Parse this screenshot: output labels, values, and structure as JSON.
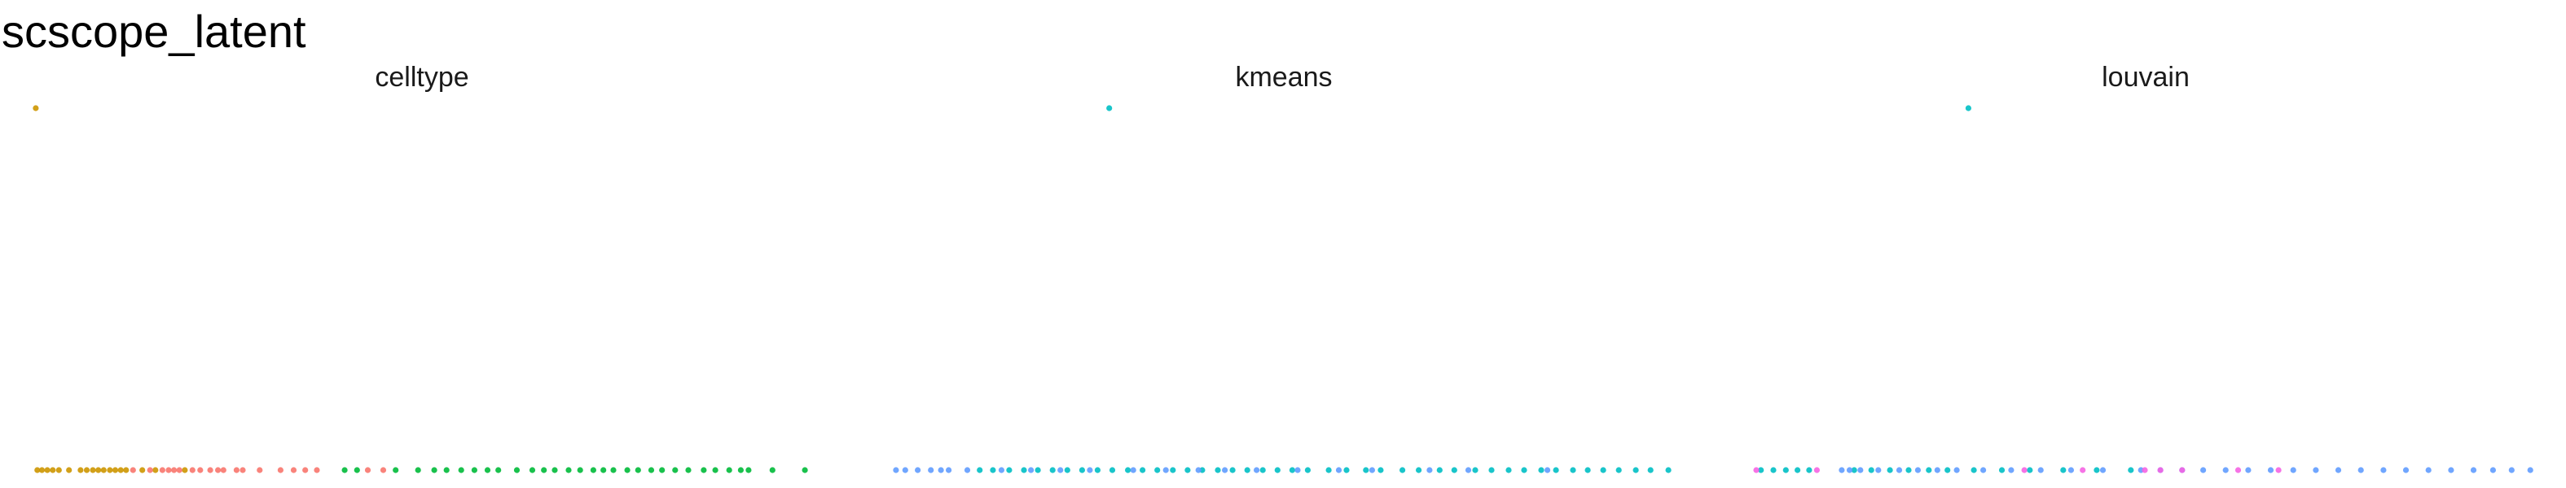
{
  "title": "scscope_latent",
  "colors": {
    "c1": "#cd9600",
    "c2": "#f8766d",
    "c3": "#00ba38",
    "c4": "#00bfc4",
    "c5": "#619cff",
    "c6": "#f564e3"
  },
  "chart_data": [
    {
      "type": "scatter",
      "title": "celltype",
      "grid": false,
      "axes_visible": false,
      "series": [
        {
          "color": "#cd9600",
          "points": [
            [
              0.002,
              1.0
            ],
            [
              0.004,
              0.0
            ],
            [
              0.01,
              0.0
            ],
            [
              0.017,
              0.0
            ],
            [
              0.024,
              0.0
            ],
            [
              0.032,
              0.0
            ],
            [
              0.045,
              0.0
            ],
            [
              0.06,
              0.0
            ],
            [
              0.068,
              0.0
            ],
            [
              0.076,
              0.0
            ],
            [
              0.083,
              0.0
            ],
            [
              0.09,
              0.0
            ],
            [
              0.098,
              0.0
            ],
            [
              0.105,
              0.0
            ],
            [
              0.112,
              0.0
            ],
            [
              0.119,
              0.0
            ],
            [
              0.14,
              0.0
            ],
            [
              0.157,
              0.0
            ],
            [
              0.195,
              0.0
            ]
          ]
        },
        {
          "color": "#f8766d",
          "points": [
            [
              0.128,
              0.0
            ],
            [
              0.15,
              0.0
            ],
            [
              0.166,
              0.0
            ],
            [
              0.174,
              0.0
            ],
            [
              0.181,
              0.0
            ],
            [
              0.188,
              0.0
            ],
            [
              0.205,
              0.0
            ],
            [
              0.215,
              0.0
            ],
            [
              0.228,
              0.0
            ],
            [
              0.238,
              0.0
            ],
            [
              0.245,
              0.0
            ],
            [
              0.262,
              0.0
            ],
            [
              0.27,
              0.0
            ],
            [
              0.292,
              0.0
            ],
            [
              0.319,
              0.0
            ],
            [
              0.336,
              0.0
            ],
            [
              0.351,
              0.0
            ],
            [
              0.366,
              0.0
            ],
            [
              0.432,
              0.0
            ],
            [
              0.452,
              0.0
            ]
          ]
        },
        {
          "color": "#00ba38",
          "points": [
            [
              0.402,
              0.0
            ],
            [
              0.418,
              0.0
            ],
            [
              0.468,
              0.0
            ],
            [
              0.497,
              0.0
            ],
            [
              0.518,
              0.0
            ],
            [
              0.534,
              0.0
            ],
            [
              0.553,
              0.0
            ],
            [
              0.57,
              0.0
            ],
            [
              0.587,
              0.0
            ],
            [
              0.601,
              0.0
            ],
            [
              0.625,
              0.0
            ],
            [
              0.645,
              0.0
            ],
            [
              0.66,
              0.0
            ],
            [
              0.674,
              0.0
            ],
            [
              0.692,
              0.0
            ],
            [
              0.707,
              0.0
            ],
            [
              0.724,
              0.0
            ],
            [
              0.737,
              0.0
            ],
            [
              0.75,
              0.0
            ],
            [
              0.768,
              0.0
            ],
            [
              0.782,
              0.0
            ],
            [
              0.799,
              0.0
            ],
            [
              0.813,
              0.0
            ],
            [
              0.83,
              0.0
            ],
            [
              0.847,
              0.0
            ],
            [
              0.867,
              0.0
            ],
            [
              0.882,
              0.0
            ],
            [
              0.9,
              0.0
            ],
            [
              0.915,
              0.0
            ],
            [
              0.925,
              0.0
            ],
            [
              0.956,
              0.0
            ],
            [
              0.998,
              0.0
            ]
          ]
        }
      ]
    },
    {
      "type": "scatter",
      "title": "kmeans",
      "grid": false,
      "axes_visible": false,
      "series": [
        {
          "color": "#00bfc4",
          "points": [
            [
              0.277,
              1.0
            ],
            [
              0.11,
              0.0
            ],
            [
              0.127,
              0.0
            ],
            [
              0.148,
              0.0
            ],
            [
              0.167,
              0.0
            ],
            [
              0.185,
              0.0
            ],
            [
              0.204,
              0.0
            ],
            [
              0.223,
              0.0
            ],
            [
              0.242,
              0.0
            ],
            [
              0.262,
              0.0
            ],
            [
              0.281,
              0.0
            ],
            [
              0.301,
              0.0
            ],
            [
              0.32,
              0.0
            ],
            [
              0.339,
              0.0
            ],
            [
              0.359,
              0.0
            ],
            [
              0.378,
              0.0
            ],
            [
              0.397,
              0.0
            ],
            [
              0.417,
              0.0
            ],
            [
              0.436,
              0.0
            ],
            [
              0.455,
              0.0
            ],
            [
              0.475,
              0.0
            ],
            [
              0.494,
              0.0
            ],
            [
              0.513,
              0.0
            ],
            [
              0.533,
              0.0
            ],
            [
              0.56,
              0.0
            ],
            [
              0.583,
              0.0
            ],
            [
              0.608,
              0.0
            ],
            [
              0.627,
              0.0
            ],
            [
              0.655,
              0.0
            ],
            [
              0.676,
              0.0
            ],
            [
              0.703,
              0.0
            ],
            [
              0.722,
              0.0
            ],
            [
              0.749,
              0.0
            ],
            [
              0.77,
              0.0
            ],
            [
              0.792,
              0.0
            ],
            [
              0.812,
              0.0
            ],
            [
              0.834,
              0.0
            ],
            [
              0.853,
              0.0
            ],
            [
              0.875,
              0.0
            ],
            [
              0.894,
              0.0
            ],
            [
              0.914,
              0.0
            ],
            [
              0.934,
              0.0
            ],
            [
              0.956,
              0.0
            ],
            [
              0.975,
              0.0
            ],
            [
              0.998,
              0.0
            ]
          ]
        },
        {
          "color": "#619cff",
          "points": [
            [
              0.002,
              0.0
            ],
            [
              0.014,
              0.0
            ],
            [
              0.03,
              0.0
            ],
            [
              0.047,
              0.0
            ],
            [
              0.06,
              0.0
            ],
            [
              0.07,
              0.0
            ],
            [
              0.094,
              0.0
            ],
            [
              0.138,
              0.0
            ],
            [
              0.176,
              0.0
            ],
            [
              0.214,
              0.0
            ],
            [
              0.252,
              0.0
            ],
            [
              0.308,
              0.0
            ],
            [
              0.35,
              0.0
            ],
            [
              0.392,
              0.0
            ],
            [
              0.426,
              0.0
            ],
            [
              0.467,
              0.0
            ],
            [
              0.52,
              0.0
            ],
            [
              0.573,
              0.0
            ],
            [
              0.616,
              0.0
            ],
            [
              0.69,
              0.0
            ],
            [
              0.74,
              0.0
            ],
            [
              0.842,
              0.0
            ]
          ]
        }
      ]
    },
    {
      "type": "scatter",
      "title": "louvain",
      "grid": false,
      "axes_visible": false,
      "series": [
        {
          "color": "#00bfc4",
          "points": [
            [
              0.273,
              1.0
            ],
            [
              0.006,
              0.0
            ],
            [
              0.022,
              0.0
            ],
            [
              0.038,
              0.0
            ],
            [
              0.053,
              0.0
            ],
            [
              0.068,
              0.0
            ],
            [
              0.126,
              0.0
            ],
            [
              0.148,
              0.0
            ],
            [
              0.172,
              0.0
            ],
            [
              0.196,
              0.0
            ],
            [
              0.222,
              0.0
            ],
            [
              0.246,
              0.0
            ],
            [
              0.28,
              0.0
            ],
            [
              0.316,
              0.0
            ],
            [
              0.352,
              0.0
            ],
            [
              0.395,
              0.0
            ],
            [
              0.438,
              0.0
            ],
            [
              0.482,
              0.0
            ]
          ]
        },
        {
          "color": "#619cff",
          "points": [
            [
              0.11,
              0.0
            ],
            [
              0.12,
              0.0
            ],
            [
              0.134,
              0.0
            ],
            [
              0.157,
              0.0
            ],
            [
              0.184,
              0.0
            ],
            [
              0.208,
              0.0
            ],
            [
              0.233,
              0.0
            ],
            [
              0.258,
              0.0
            ],
            [
              0.292,
              0.0
            ],
            [
              0.328,
              0.0
            ],
            [
              0.366,
              0.0
            ],
            [
              0.405,
              0.0
            ],
            [
              0.446,
              0.0
            ],
            [
              0.495,
              0.0
            ],
            [
              0.52,
              0.0
            ],
            [
              0.548,
              0.0
            ],
            [
              0.575,
              0.0
            ],
            [
              0.604,
              0.0
            ],
            [
              0.633,
              0.0
            ],
            [
              0.662,
              0.0
            ],
            [
              0.691,
              0.0
            ],
            [
              0.72,
              0.0
            ],
            [
              0.749,
              0.0
            ],
            [
              0.778,
              0.0
            ],
            [
              0.807,
              0.0
            ],
            [
              0.836,
              0.0
            ],
            [
              0.865,
              0.0
            ],
            [
              0.894,
              0.0
            ],
            [
              0.923,
              0.0
            ],
            [
              0.948,
              0.0
            ],
            [
              0.972,
              0.0
            ],
            [
              0.996,
              0.0
            ]
          ]
        },
        {
          "color": "#f564e3",
          "points": [
            [
              0.0,
              0.0
            ],
            [
              0.078,
              0.0
            ],
            [
              0.345,
              0.0
            ],
            [
              0.42,
              0.0
            ],
            [
              0.5,
              0.0
            ],
            [
              0.52,
              0.0
            ],
            [
              0.548,
              0.0
            ],
            [
              0.62,
              0.0
            ],
            [
              0.672,
              0.0
            ]
          ]
        }
      ]
    }
  ]
}
